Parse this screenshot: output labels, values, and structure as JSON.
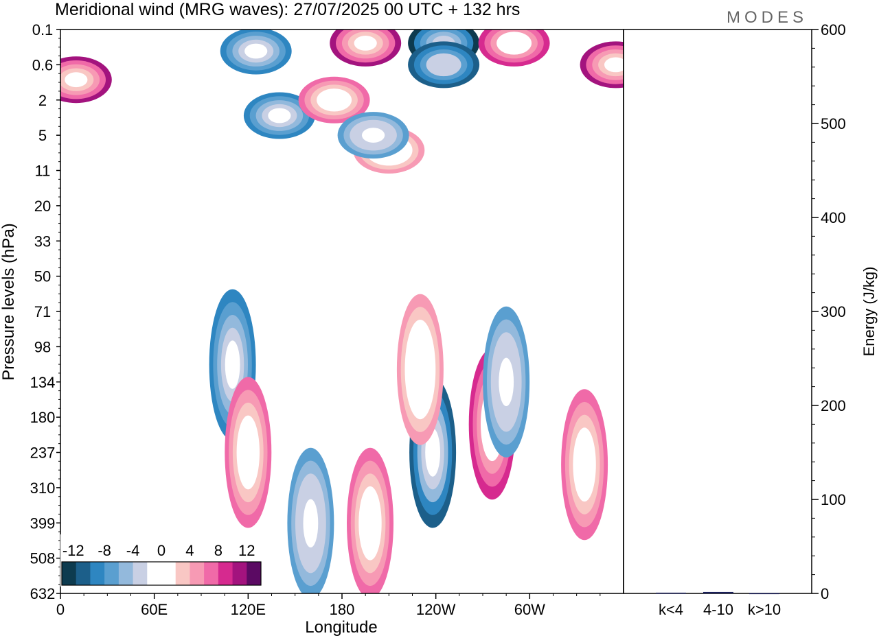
{
  "logo": "MODES",
  "chart_data": [
    {
      "type": "heatmap",
      "title": "Meridional wind (MRG waves):  27/07/2025  00 UTC  + 132 hrs",
      "xlabel": "Longitude",
      "ylabel": "Pressure levels (hPa)",
      "x_ticks": [
        "0",
        "60E",
        "120E",
        "180",
        "120W",
        "60W"
      ],
      "x_tick_degrees": [
        0,
        60,
        120,
        180,
        240,
        300
      ],
      "xlim_degrees": [
        0,
        360
      ],
      "y_ticks": [
        "0.1",
        "0.6",
        "2",
        "5",
        "11",
        "20",
        "33",
        "50",
        "71",
        "98",
        "134",
        "180",
        "237",
        "310",
        "399",
        "508",
        "632"
      ],
      "colorbar": {
        "tick_labels": [
          "-12",
          "-8",
          "-4",
          "0",
          "4",
          "8",
          "12"
        ],
        "levels": [
          -14,
          -12,
          -10,
          -8,
          -6,
          -4,
          -2,
          2,
          4,
          6,
          8,
          10,
          12,
          14
        ],
        "colors": [
          "#0d3b4f",
          "#1c5f8a",
          "#2e86c1",
          "#5a9fd0",
          "#93b9dc",
          "#c9d0e4",
          "#ffffff",
          "#ffffff",
          "#f9c7c4",
          "#f79ab4",
          "#f06aa8",
          "#d62a8f",
          "#a3137e",
          "#5b0a63"
        ]
      },
      "features": [
        {
          "lon": 10,
          "p": 1.0,
          "value": 15
        },
        {
          "lon": 195,
          "p": 0.2,
          "value": 15
        },
        {
          "lon": 245,
          "p": 0.2,
          "value": -15
        },
        {
          "lon": 245,
          "p": 0.6,
          "value": -14
        },
        {
          "lon": 290,
          "p": 0.2,
          "value": 14
        },
        {
          "lon": 355,
          "p": 0.6,
          "value": 15
        },
        {
          "lon": 125,
          "p": 0.3,
          "value": -11
        },
        {
          "lon": 140,
          "p": 3.0,
          "value": -10
        },
        {
          "lon": 175,
          "p": 2.0,
          "value": 10
        },
        {
          "lon": 210,
          "p": 7.0,
          "value": 8
        },
        {
          "lon": 200,
          "p": 5.0,
          "value": -8
        },
        {
          "lon": 110,
          "p": 115,
          "value": -10
        },
        {
          "lon": 120,
          "p": 237,
          "value": 10
        },
        {
          "lon": 160,
          "p": 400,
          "value": -9
        },
        {
          "lon": 198,
          "p": 400,
          "value": 11
        },
        {
          "lon": 238,
          "p": 237,
          "value": -13
        },
        {
          "lon": 276,
          "p": 190,
          "value": 14
        },
        {
          "lon": 285,
          "p": 134,
          "value": -9
        },
        {
          "lon": 335,
          "p": 260,
          "value": 10
        },
        {
          "lon": 230,
          "p": 120,
          "value": 8
        }
      ]
    },
    {
      "type": "bar",
      "ylabel": "Energy (J/kg)",
      "ylim": [
        0,
        600
      ],
      "y_ticks": [
        "0",
        "100",
        "200",
        "300",
        "400",
        "500",
        "600"
      ],
      "categories": [
        "k<4",
        "4-10",
        "k>10"
      ],
      "values": [
        0.8,
        1.5,
        0.3
      ],
      "bar_color": "#1a1f5a"
    }
  ]
}
